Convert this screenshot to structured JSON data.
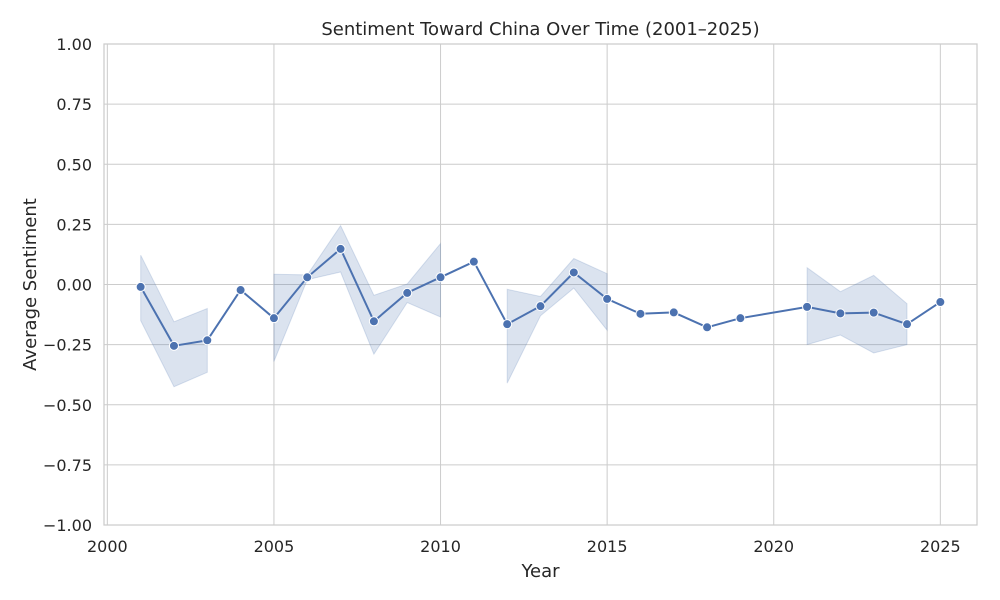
{
  "chart_data": {
    "type": "line",
    "title": "Sentiment Toward China Over Time (2001–2025)",
    "xlabel": "Year",
    "ylabel": "Average Sentiment",
    "xlim": [
      1999.9,
      2026.1
    ],
    "ylim": [
      -1.0,
      1.0
    ],
    "x_ticks": [
      2000,
      2005,
      2010,
      2015,
      2020,
      2025
    ],
    "x_tick_labels": [
      "2000",
      "2005",
      "2010",
      "2015",
      "2020",
      "2025"
    ],
    "y_ticks": [
      -1.0,
      -0.75,
      -0.5,
      -0.25,
      0.0,
      0.25,
      0.5,
      0.75,
      1.0
    ],
    "y_tick_labels": [
      "−1.00",
      "−0.75",
      "−0.50",
      "−0.25",
      "0.00",
      "0.25",
      "0.50",
      "0.75",
      "1.00"
    ],
    "grid": true,
    "color": "#4c72b0",
    "series": [
      {
        "x": [
          2001,
          2002,
          2003,
          2004,
          2005,
          2006,
          2007,
          2008,
          2009,
          2010,
          2011,
          2012,
          2013,
          2014,
          2015,
          2016,
          2017,
          2018,
          2019,
          2021,
          2022,
          2023,
          2024,
          2025
        ],
        "y": [
          -0.01,
          -0.255,
          -0.232,
          -0.023,
          -0.14,
          0.03,
          0.148,
          -0.153,
          -0.035,
          0.03,
          0.095,
          -0.165,
          -0.09,
          0.05,
          -0.06,
          -0.122,
          -0.116,
          -0.178,
          -0.14,
          -0.093,
          -0.12,
          -0.117,
          -0.165,
          -0.073
        ],
        "ci_lower": [
          -0.15,
          -0.425,
          -0.365,
          null,
          -0.32,
          0.02,
          0.052,
          -0.29,
          -0.075,
          -0.135,
          null,
          -0.41,
          -0.13,
          -0.015,
          -0.19,
          null,
          null,
          null,
          null,
          -0.25,
          -0.21,
          -0.285,
          -0.25,
          null
        ],
        "ci_upper": [
          0.122,
          -0.155,
          -0.1,
          null,
          0.043,
          0.04,
          0.245,
          -0.045,
          0.002,
          0.17,
          null,
          -0.02,
          -0.05,
          0.108,
          0.045,
          null,
          null,
          null,
          null,
          0.07,
          -0.03,
          0.038,
          -0.08,
          null
        ]
      }
    ]
  }
}
